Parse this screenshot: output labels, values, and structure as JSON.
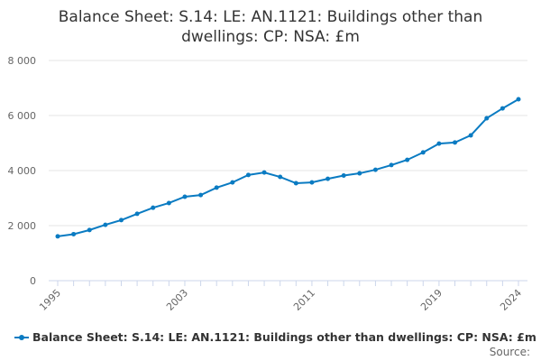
{
  "chart_data": {
    "type": "line",
    "title": "Balance Sheet: S.14: LE: AN.1121: Buildings other than dwellings: CP: NSA: £m",
    "x": [
      1995,
      1996,
      1997,
      1998,
      1999,
      2000,
      2001,
      2002,
      2003,
      2004,
      2005,
      2006,
      2007,
      2008,
      2009,
      2010,
      2011,
      2012,
      2013,
      2014,
      2015,
      2016,
      2017,
      2018,
      2019,
      2020,
      2021,
      2022,
      2023,
      2024
    ],
    "series": [
      {
        "name": "Balance Sheet: S.14: LE: AN.1121: Buildings other than dwellings: CP: NSA: £m",
        "values": [
          1610,
          1690,
          1840,
          2030,
          2200,
          2430,
          2650,
          2820,
          3050,
          3110,
          3380,
          3570,
          3840,
          3930,
          3770,
          3540,
          3570,
          3700,
          3820,
          3900,
          4030,
          4200,
          4390,
          4660,
          4980,
          5020,
          5280,
          5900,
          6260,
          6590
        ]
      }
    ],
    "ylim": [
      0,
      8000
    ],
    "yticks": [
      0,
      2000,
      4000,
      6000,
      8000
    ],
    "ytick_labels": [
      "0",
      "2 000",
      "4 000",
      "6 000",
      "8 000"
    ],
    "xtick_labels": [
      "1995",
      "2003",
      "2011",
      "2019",
      "2024"
    ],
    "grid": true,
    "legend": "bottom-left",
    "color": "#0a7bc2"
  },
  "source_label": "Source:"
}
